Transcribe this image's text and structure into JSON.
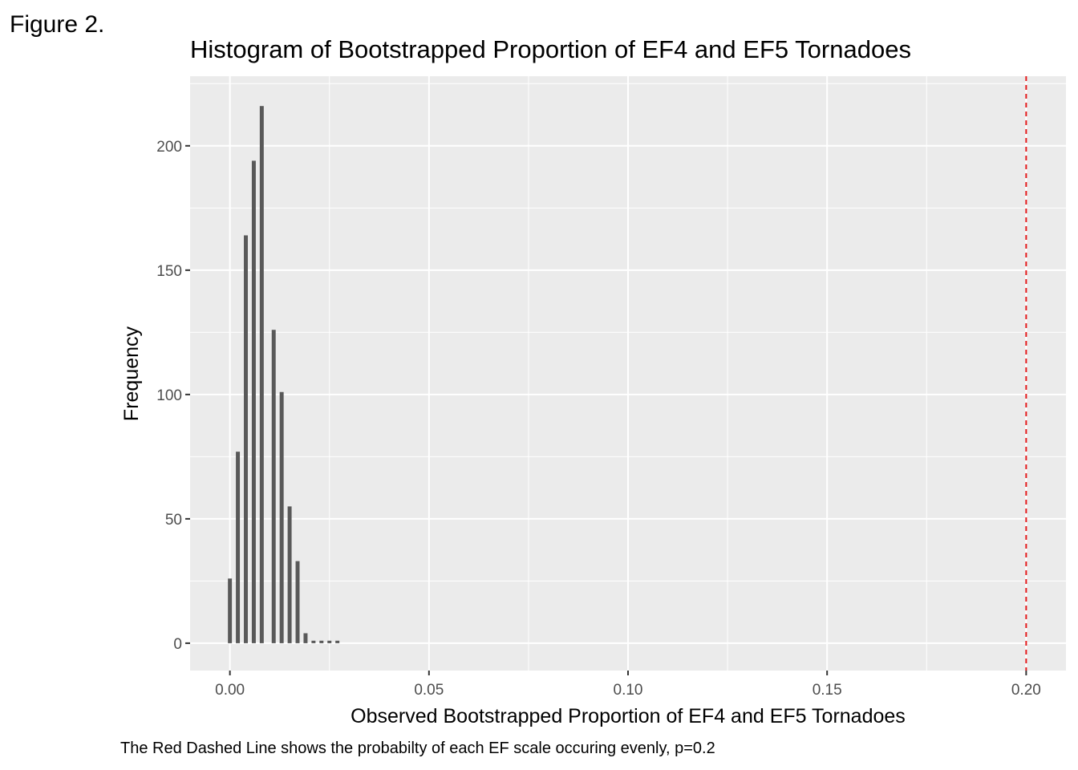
{
  "figure_label": "Figure 2.",
  "caption": "The Red Dashed Line shows the probabilty of each EF scale occuring evenly, p=0.2",
  "colors": {
    "panel_background": "#ebebeb",
    "grid_major": "#ffffff",
    "bar_fill": "#595959",
    "reference_line": "#e41a1c",
    "tick_text": "#4d4d4d"
  },
  "chart_data": {
    "type": "bar",
    "title": "Histogram of Bootstrapped Proportion of EF4 and EF5 Tornadoes",
    "xlabel": "Observed Bootstrapped Proportion of EF4 and EF5 Tornadoes",
    "ylabel": "Frequency",
    "xlim": [
      -0.01,
      0.21
    ],
    "ylim": [
      -11,
      228
    ],
    "x_ticks": [
      0.0,
      0.05,
      0.1,
      0.15,
      0.2
    ],
    "x_tick_labels": [
      "0.00",
      "0.05",
      "0.10",
      "0.15",
      "0.20"
    ],
    "y_ticks": [
      0,
      50,
      100,
      150,
      200
    ],
    "y_tick_labels": [
      "0",
      "50",
      "100",
      "150",
      "200"
    ],
    "grid": true,
    "bar_width": 0.001,
    "bins": [
      {
        "x": 0.0,
        "count": 26
      },
      {
        "x": 0.002,
        "count": 77
      },
      {
        "x": 0.004,
        "count": 164
      },
      {
        "x": 0.006,
        "count": 194
      },
      {
        "x": 0.008,
        "count": 216
      },
      {
        "x": 0.011,
        "count": 126
      },
      {
        "x": 0.013,
        "count": 101
      },
      {
        "x": 0.015,
        "count": 55
      },
      {
        "x": 0.017,
        "count": 33
      },
      {
        "x": 0.019,
        "count": 4
      },
      {
        "x": 0.021,
        "count": 1
      },
      {
        "x": 0.023,
        "count": 1
      },
      {
        "x": 0.025,
        "count": 1
      },
      {
        "x": 0.027,
        "count": 1
      }
    ],
    "reference_line": {
      "x": 0.2,
      "style": "dashed"
    }
  }
}
